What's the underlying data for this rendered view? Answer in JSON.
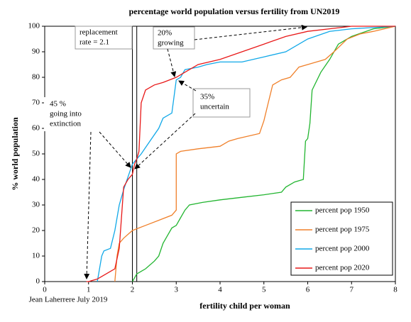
{
  "chart_data": {
    "type": "line",
    "title": "percentage world population versus fertility from UN2019",
    "x_label": "fertility child per woman",
    "y_label": "% world population",
    "credit": "Jean Laherrere July 2019",
    "xlim": [
      0,
      8
    ],
    "ylim": [
      0,
      100
    ],
    "xticks": [
      0,
      1,
      2,
      3,
      4,
      5,
      6,
      7,
      8
    ],
    "yticks": [
      0,
      10,
      20,
      30,
      40,
      50,
      60,
      70,
      80,
      90,
      100
    ],
    "vlines": [
      2,
      2.1
    ],
    "legend": "lower right",
    "annotations": [
      {
        "lines": [
          "replacement",
          "rate = 2.1"
        ]
      },
      {
        "lines": [
          "20%",
          "growing"
        ]
      },
      {
        "lines": [
          "35%",
          "uncertain"
        ]
      },
      {
        "lines": [
          "45 %",
          "going into",
          "extinction"
        ]
      }
    ],
    "series": [
      {
        "name": "percent pop 1950",
        "color": "#22b530",
        "x": [
          2.0,
          2.1,
          2.3,
          2.5,
          2.6,
          2.7,
          2.8,
          2.9,
          3.0,
          3.1,
          3.2,
          3.3,
          3.6,
          4.0,
          4.5,
          5.0,
          5.4,
          5.5,
          5.7,
          5.9,
          5.95,
          6.0,
          6.05,
          6.1,
          6.3,
          6.5,
          6.7,
          7.0,
          7.5,
          8.0
        ],
        "values": [
          0,
          3,
          5,
          8,
          10,
          15,
          18,
          21,
          22,
          25,
          28,
          30,
          31,
          32,
          33,
          34,
          35,
          37,
          39,
          40,
          55,
          56,
          62,
          75,
          82,
          87,
          93,
          96,
          99,
          100
        ]
      },
      {
        "name": "percent pop 1975",
        "color": "#f0802a",
        "x": [
          1.6,
          1.65,
          1.7,
          1.8,
          2.0,
          2.3,
          2.6,
          2.9,
          3.0,
          3.0,
          3.1,
          3.5,
          4.0,
          4.2,
          4.4,
          4.9,
          5.0,
          5.1,
          5.2,
          5.4,
          5.6,
          5.8,
          6.0,
          6.2,
          6.4,
          6.6,
          6.9,
          7.2,
          7.5,
          8.0
        ],
        "values": [
          0,
          10,
          15,
          17,
          20,
          22,
          24,
          26,
          28,
          50,
          51,
          52,
          53,
          55,
          56,
          58,
          63,
          70,
          77,
          79,
          80,
          84,
          85,
          86,
          87,
          90,
          95,
          97,
          98,
          100
        ]
      },
      {
        "name": "percent pop 2000",
        "color": "#10a8e8",
        "x": [
          1.2,
          1.3,
          1.35,
          1.5,
          1.6,
          1.7,
          1.8,
          1.9,
          2.0,
          2.1,
          2.2,
          2.4,
          2.6,
          2.7,
          2.9,
          3.0,
          3.1,
          3.2,
          3.5,
          3.7,
          4.0,
          4.5,
          5.0,
          5.5,
          6.0,
          6.5,
          7.0,
          8.0
        ],
        "values": [
          0,
          10,
          12,
          13,
          20,
          30,
          36,
          41,
          46,
          48,
          50,
          55,
          60,
          64,
          66,
          79,
          80,
          83,
          84,
          85,
          86,
          86,
          88,
          90,
          95,
          98,
          99,
          100
        ]
      },
      {
        "name": "percent pop 2020",
        "color": "#e81818",
        "x": [
          0.95,
          1.0,
          1.2,
          1.3,
          1.6,
          1.7,
          1.8,
          1.9,
          2.0,
          2.05,
          2.1,
          2.15,
          2.2,
          2.3,
          2.5,
          2.7,
          3.0,
          3.2,
          3.5,
          4.0,
          4.5,
          5.0,
          5.5,
          6.0,
          6.5,
          7.0,
          8.0
        ],
        "values": [
          0,
          0,
          1,
          2,
          5,
          13,
          37,
          40,
          42,
          46,
          48,
          51,
          70,
          75,
          77,
          78,
          80,
          82,
          85,
          87,
          90,
          93,
          96,
          98,
          99,
          100,
          100
        ]
      }
    ]
  }
}
